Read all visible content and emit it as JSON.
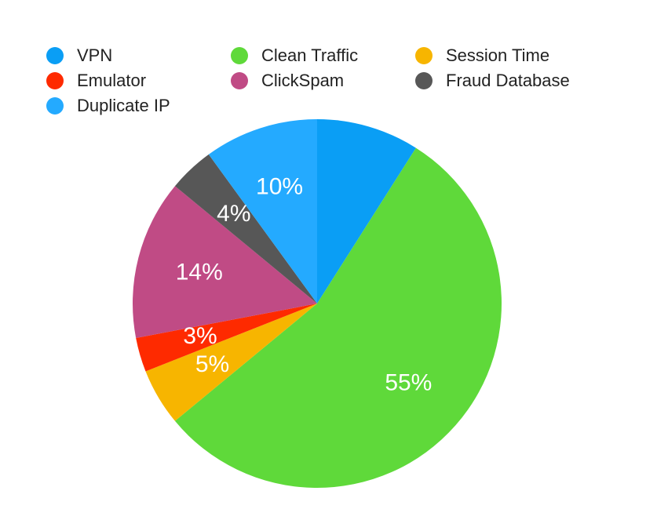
{
  "chart_data": {
    "type": "pie",
    "categories": [
      "VPN",
      "Clean Traffic",
      "Session Time",
      "Emulator",
      "ClickSpam",
      "Fraud Database",
      "Duplicate IP"
    ],
    "values": [
      9,
      55,
      5,
      3,
      14,
      4,
      10
    ],
    "value_labels": [
      null,
      "55%",
      "5%",
      "3%",
      "14%",
      "4%",
      "10%"
    ],
    "colors": [
      "#0a9ef5",
      "#5fd93a",
      "#f7b500",
      "#fe2a00",
      "#c04b85",
      "#575757",
      "#24aaff"
    ]
  }
}
